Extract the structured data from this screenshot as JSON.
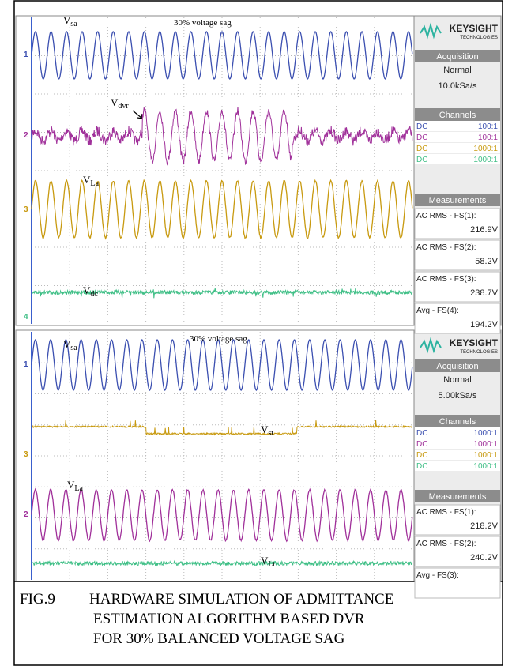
{
  "panels": [
    {
      "title": "30% voltage sag",
      "labels": [
        {
          "symbol": "V",
          "subscript": "sa"
        },
        {
          "symbol": "V",
          "subscript": "dvr"
        },
        {
          "symbol": "V",
          "subscript": "La"
        },
        {
          "symbol": "V",
          "subscript": "dc"
        }
      ],
      "channel_markers": [
        "1",
        "2",
        "3",
        "4"
      ],
      "sidebar": {
        "brand": "KEYSIGHT",
        "brand_sub": "TECHNOLOGIES",
        "acquisition": {
          "header": "Acquisition",
          "mode": "Normal",
          "rate": "10.0kSa/s"
        },
        "channels": {
          "header": "Channels",
          "rows": [
            {
              "coupling": "DC",
              "ratio": "100:1"
            },
            {
              "coupling": "DC",
              "ratio": "100:1"
            },
            {
              "coupling": "DC",
              "ratio": "1000:1"
            },
            {
              "coupling": "DC",
              "ratio": "1000:1"
            }
          ]
        },
        "measurements": {
          "header": "Measurements",
          "rows": [
            {
              "label": "AC RMS - FS(1):",
              "value": "216.9V"
            },
            {
              "label": "AC RMS - FS(2):",
              "value": "58.2V"
            },
            {
              "label": "AC RMS - FS(3):",
              "value": "238.7V"
            },
            {
              "label": "Avg - FS(4):",
              "value": "194.2V"
            }
          ]
        }
      }
    },
    {
      "title": "30% voltage sag",
      "labels": [
        {
          "symbol": "V",
          "subscript": "sa"
        },
        {
          "symbol": "V",
          "subscript": "st"
        },
        {
          "symbol": "V",
          "subscript": "La"
        },
        {
          "symbol": "V",
          "subscript": "Lt"
        }
      ],
      "channel_markers": [
        "1",
        "3",
        "2"
      ],
      "sidebar": {
        "brand": "KEYSIGHT",
        "brand_sub": "TECHNOLOGIES",
        "acquisition": {
          "header": "Acquisition",
          "mode": "Normal",
          "rate": "5.00kSa/s"
        },
        "channels": {
          "header": "Channels",
          "rows": [
            {
              "coupling": "DC",
              "ratio": "1000:1"
            },
            {
              "coupling": "DC",
              "ratio": "1000:1"
            },
            {
              "coupling": "DC",
              "ratio": "1000:1"
            },
            {
              "coupling": "DC",
              "ratio": "1000:1"
            }
          ]
        },
        "measurements": {
          "header": "Measurements",
          "rows": [
            {
              "label": "AC RMS - FS(1):",
              "value": "218.2V"
            },
            {
              "label": "AC RMS - FS(2):",
              "value": "240.2V"
            },
            {
              "label": "Avg - FS(3):"
            }
          ]
        }
      }
    }
  ],
  "caption": {
    "number": "FIG.9",
    "lines": [
      "HARDWARE SIMULATION OF ADMITTANCE",
      "ESTIMATION ALGORITHM BASED DVR",
      "FOR 30% BALANCED VOLTAGE SAG"
    ]
  }
}
